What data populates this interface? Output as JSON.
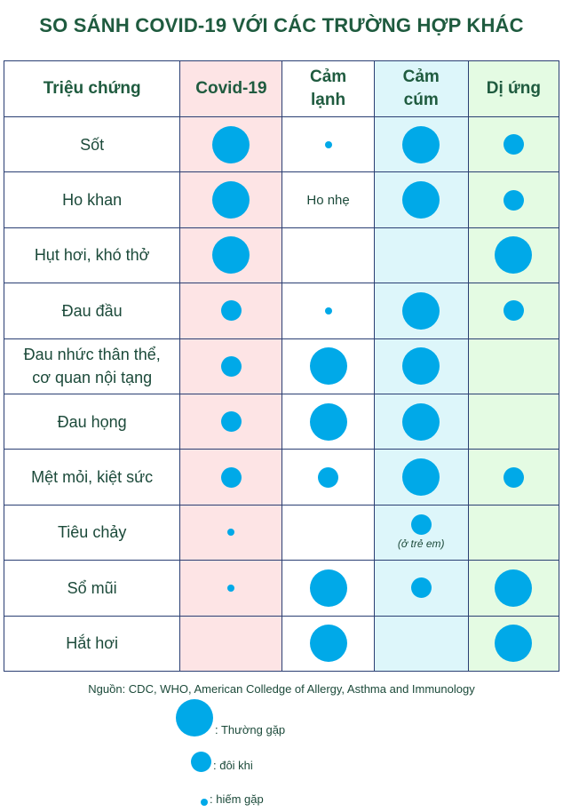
{
  "title": "SO SÁNH COVID-19 VỚI CÁC TRƯỜNG HỢP KHÁC",
  "chart_data": {
    "type": "table",
    "columns": [
      "Triệu chứng",
      "Covid-19",
      "Cảm\nlạnh",
      "Cảm\ncúm",
      "Dị ứng"
    ],
    "column_backgrounds": [
      "#ffffff",
      "#fde4e5",
      "#ffffff",
      "#ddf6fa",
      "#e4fbe3"
    ],
    "dot_color": "#00a9e8",
    "levels": {
      "l": "Thường gặp",
      "m": "đôi khi",
      "s": "hiếm gặp"
    },
    "rows": [
      {
        "symptom": "Sốt",
        "cells": [
          {
            "dot": "l"
          },
          {
            "dot": "s"
          },
          {
            "dot": "l"
          },
          {
            "dot": "m"
          }
        ]
      },
      {
        "symptom": "Ho khan",
        "cells": [
          {
            "dot": "l"
          },
          {
            "text": "Ho nhẹ"
          },
          {
            "dot": "l"
          },
          {
            "dot": "m"
          }
        ]
      },
      {
        "symptom": "Hụt hơi, khó thở",
        "cells": [
          {
            "dot": "l"
          },
          {},
          {},
          {
            "dot": "l"
          }
        ]
      },
      {
        "symptom": "Đau đầu",
        "cells": [
          {
            "dot": "m"
          },
          {
            "dot": "s"
          },
          {
            "dot": "l"
          },
          {
            "dot": "m"
          }
        ]
      },
      {
        "symptom": "Đau nhức thân thể,\ncơ quan nội tạng",
        "cells": [
          {
            "dot": "m"
          },
          {
            "dot": "l"
          },
          {
            "dot": "l"
          },
          {}
        ]
      },
      {
        "symptom": "Đau họng",
        "cells": [
          {
            "dot": "m"
          },
          {
            "dot": "l"
          },
          {
            "dot": "l"
          },
          {}
        ]
      },
      {
        "symptom": "Mệt mỏi, kiệt sức",
        "cells": [
          {
            "dot": "m"
          },
          {
            "dot": "m"
          },
          {
            "dot": "l"
          },
          {
            "dot": "m"
          }
        ]
      },
      {
        "symptom": "Tiêu chảy",
        "cells": [
          {
            "dot": "s"
          },
          {},
          {
            "dot": "m",
            "sub": "(ở trẻ em)"
          },
          {}
        ]
      },
      {
        "symptom": "Sổ mũi",
        "cells": [
          {
            "dot": "s"
          },
          {
            "dot": "l"
          },
          {
            "dot": "m"
          },
          {
            "dot": "l"
          }
        ]
      },
      {
        "symptom": "Hắt hơi",
        "cells": [
          {},
          {
            "dot": "l"
          },
          {},
          {
            "dot": "l"
          }
        ]
      }
    ]
  },
  "source": "Nguồn: CDC, WHO, American Colledge of Allergy, Asthma and Immunology",
  "legend": [
    {
      "size": "l",
      "label": ": Thường gặp"
    },
    {
      "size": "m",
      "label": ": đôi khi"
    },
    {
      "size": "s",
      "label": ": hiếm gặp"
    }
  ]
}
